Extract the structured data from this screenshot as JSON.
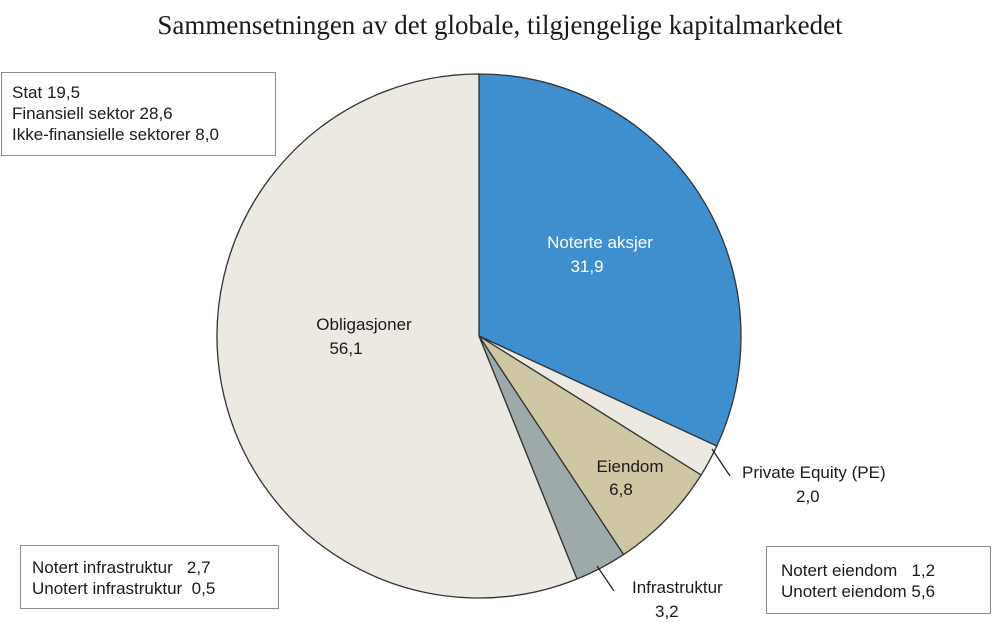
{
  "chart_data": {
    "type": "pie",
    "title": "Sammensetningen av det globale, tilgjengelige kapitalmarkedet",
    "start_angle_deg": 0,
    "direction": "clockwise",
    "slices": [
      {
        "name": "Noterte aksjer",
        "value": 31.9,
        "value_label": "31,9",
        "color": "#3f8fcf"
      },
      {
        "name": "Private Equity (PE)",
        "value": 2.0,
        "value_label": "2,0",
        "color": "#ece8e2"
      },
      {
        "name": "Eiendom",
        "value": 6.8,
        "value_label": "6,8",
        "color": "#cdc8a3"
      },
      {
        "name": "Infrastruktur",
        "value": 3.2,
        "value_label": "3,2",
        "color": "#9eaaaa"
      },
      {
        "name": "Obligasjoner",
        "value": 56.1,
        "value_label": "56,1",
        "color": "#ece8e2"
      }
    ],
    "breakdowns": {
      "obligasjoner": [
        "Stat 19,5",
        "Finansiell sektor 28,6",
        "Ikke-finansielle sektorer 8,0"
      ],
      "infrastruktur": [
        "Notert infrastruktur   2,7",
        "Unotert infrastruktur  0,5"
      ],
      "eiendom": [
        "Notert eiendom   1,2",
        "Unotert eiendom 5,6"
      ]
    }
  }
}
